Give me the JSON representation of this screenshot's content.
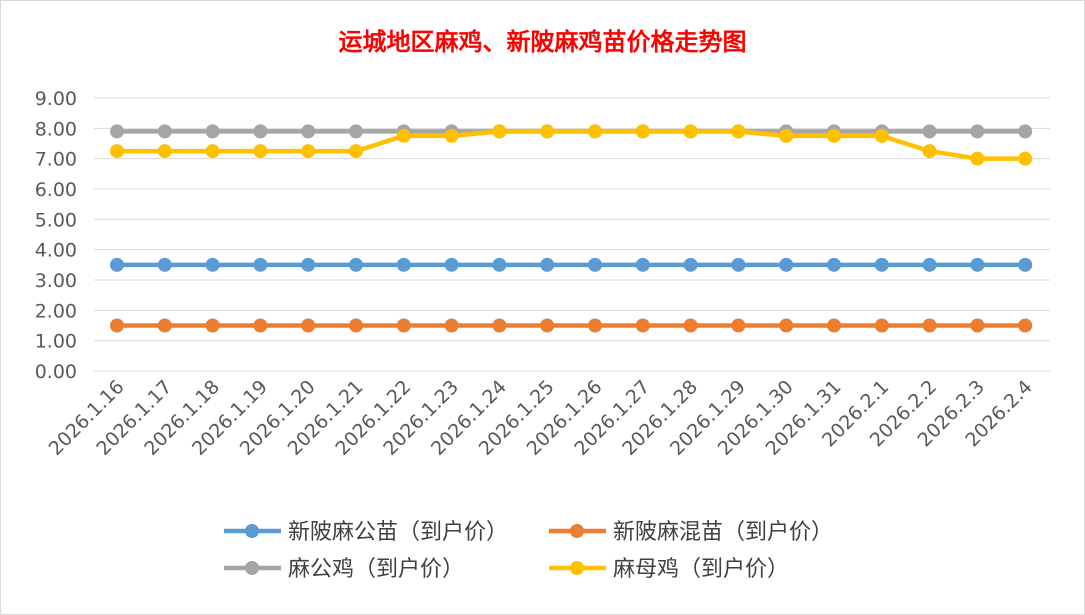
{
  "chart_data": {
    "type": "line",
    "title": "运城地区麻鸡、新陂麻鸡苗价格走势图",
    "xlabel": "",
    "ylabel": "",
    "categories": [
      "2026.1.16",
      "2026.1.17",
      "2026.1.18",
      "2026.1.19",
      "2026.1.20",
      "2026.1.21",
      "2026.1.22",
      "2026.1.23",
      "2026.1.24",
      "2026.1.25",
      "2026.1.26",
      "2026.1.27",
      "2026.1.28",
      "2026.1.29",
      "2026.1.30",
      "2026.1.31",
      "2026.2.1",
      "2026.2.2",
      "2026.2.3",
      "2026.2.4"
    ],
    "ylim": [
      0,
      9
    ],
    "yticks": [
      "0.00",
      "1.00",
      "2.00",
      "3.00",
      "4.00",
      "5.00",
      "6.00",
      "7.00",
      "8.00",
      "9.00"
    ],
    "grid": true,
    "legend_position": "bottom",
    "series": [
      {
        "name": "新陂麻公苗（到户价）",
        "color": "#5b9bd5",
        "values": [
          3.5,
          3.5,
          3.5,
          3.5,
          3.5,
          3.5,
          3.5,
          3.5,
          3.5,
          3.5,
          3.5,
          3.5,
          3.5,
          3.5,
          3.5,
          3.5,
          3.5,
          3.5,
          3.5,
          3.5
        ]
      },
      {
        "name": "新陂麻混苗（到户价）",
        "color": "#ed7d31",
        "values": [
          1.5,
          1.5,
          1.5,
          1.5,
          1.5,
          1.5,
          1.5,
          1.5,
          1.5,
          1.5,
          1.5,
          1.5,
          1.5,
          1.5,
          1.5,
          1.5,
          1.5,
          1.5,
          1.5,
          1.5
        ]
      },
      {
        "name": "麻公鸡（到户价）",
        "color": "#a5a5a5",
        "values": [
          7.9,
          7.9,
          7.9,
          7.9,
          7.9,
          7.9,
          7.9,
          7.9,
          7.9,
          7.9,
          7.9,
          7.9,
          7.9,
          7.9,
          7.9,
          7.9,
          7.9,
          7.9,
          7.9,
          7.9
        ]
      },
      {
        "name": "麻母鸡（到户价）",
        "color": "#ffc000",
        "values": [
          7.25,
          7.25,
          7.25,
          7.25,
          7.25,
          7.25,
          7.75,
          7.75,
          7.9,
          7.9,
          7.9,
          7.9,
          7.9,
          7.9,
          7.75,
          7.75,
          7.75,
          7.25,
          7.0,
          7.0
        ]
      }
    ]
  }
}
